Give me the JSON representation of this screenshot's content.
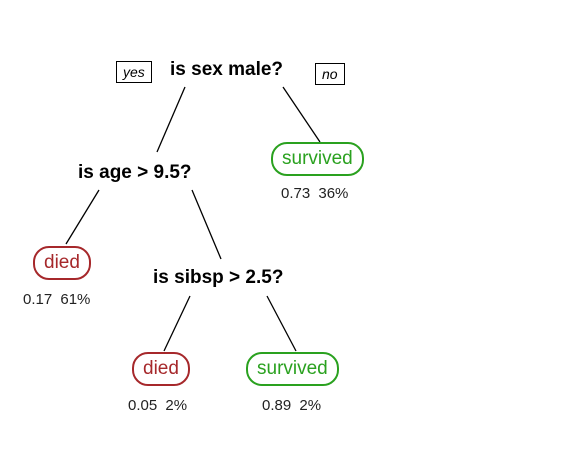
{
  "tree": {
    "branch_labels": {
      "yes": "yes",
      "no": "no"
    },
    "root": {
      "question": "is sex male?"
    },
    "node_age": {
      "question": "is age > 9.5?"
    },
    "node_sibsp": {
      "question": "is sibsp > 2.5?"
    },
    "leaf_female": {
      "label": "survived",
      "prob": "0.73",
      "pct": "36%",
      "color": "#2aa11f"
    },
    "leaf_age_young_died": {
      "label": "died",
      "prob": "0.17",
      "pct": "61%",
      "color": "#a6282b"
    },
    "leaf_sibsp_died": {
      "label": "died",
      "prob": "0.05",
      "pct": "2%",
      "color": "#a6282b"
    },
    "leaf_sibsp_survived": {
      "label": "survived",
      "prob": "0.89",
      "pct": "2%",
      "color": "#2aa11f"
    }
  }
}
